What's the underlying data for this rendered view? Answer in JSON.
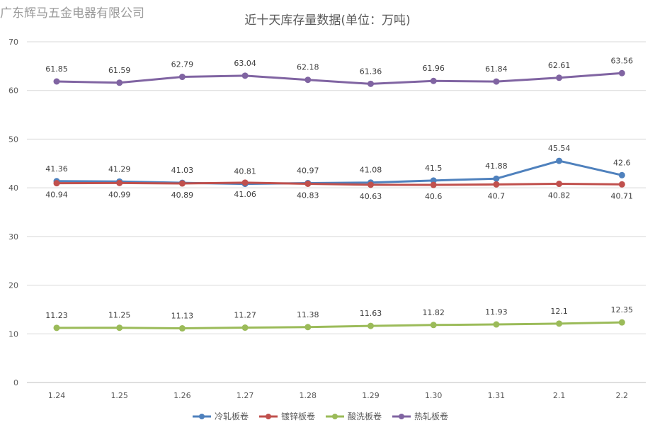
{
  "watermark": "广东辉马五金电器有限公司",
  "chart_data": {
    "type": "line",
    "title": "近十天库存量数据(单位：万吨)",
    "categories": [
      "1.24",
      "1.25",
      "1.26",
      "1.27",
      "1.28",
      "1.29",
      "1.30",
      "1.31",
      "2.1",
      "2.2"
    ],
    "ylim": [
      0,
      70
    ],
    "yticks": [
      0,
      10,
      20,
      30,
      40,
      50,
      60,
      70
    ],
    "grid": true,
    "legend_position": "bottom",
    "series": [
      {
        "name": "冷轧板卷",
        "color": "#4f81bd",
        "label_pos": "above",
        "values": [
          41.36,
          41.29,
          41.03,
          40.81,
          40.97,
          41.08,
          41.5,
          41.88,
          45.54,
          42.6
        ]
      },
      {
        "name": "镀锌板卷",
        "color": "#c0504d",
        "label_pos": "below",
        "values": [
          40.94,
          40.99,
          40.89,
          41.06,
          40.83,
          40.63,
          40.6,
          40.7,
          40.82,
          40.71
        ]
      },
      {
        "name": "酸洗板卷",
        "color": "#9bbb59",
        "label_pos": "above",
        "values": [
          11.23,
          11.25,
          11.13,
          11.27,
          11.38,
          11.63,
          11.82,
          11.93,
          12.1,
          12.35
        ]
      },
      {
        "name": "热轧板卷",
        "color": "#8064a2",
        "label_pos": "above",
        "values": [
          61.85,
          61.59,
          62.79,
          63.04,
          62.18,
          61.36,
          61.96,
          61.84,
          62.61,
          63.56
        ]
      }
    ]
  }
}
